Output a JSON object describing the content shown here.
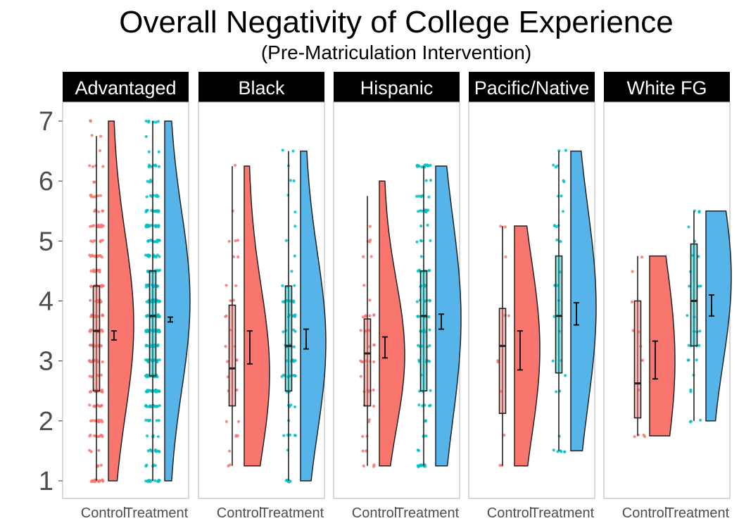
{
  "chart_data": {
    "type": "raincloud",
    "title": "Overall Negativity of College Experience",
    "subtitle": "(Pre-Matriculation Intervention)",
    "xlabel": "",
    "ylabel": "",
    "ylim": [
      1,
      7
    ],
    "y_ticks": [
      1,
      2,
      3,
      4,
      5,
      6,
      7
    ],
    "grid": false,
    "legend": "none",
    "groups": [
      "Control",
      "Treatment"
    ],
    "colors": {
      "Control": "#F8766D",
      "Treatment": "#00BFC4",
      "Control_cloud": "#F8766D",
      "Treatment_cloud": "#56B4E9",
      "strip_bg": "#000000",
      "panel_border": "#b3b3b3"
    },
    "panels": [
      {
        "name": "Advantaged",
        "control": {
          "min": 1,
          "q1": 2.5,
          "median": 3.5,
          "q3": 4.25,
          "max": 6.75,
          "mean": 3.42,
          "ci": [
            3.35,
            3.5
          ],
          "range": [
            1,
            7
          ],
          "n_points": 220,
          "density_peak": 3.6
        },
        "treatment": {
          "min": 1,
          "q1": 2.75,
          "median": 3.75,
          "q3": 4.5,
          "max": 7,
          "mean": 3.69,
          "ci": [
            3.65,
            3.73
          ],
          "range": [
            1,
            7
          ],
          "n_points": 320,
          "density_peak": 4.0
        }
      },
      {
        "name": "Black",
        "control": {
          "min": 1.25,
          "q1": 2.25,
          "median": 2.875,
          "q3": 3.93,
          "max": 6.25,
          "mean": 3.22,
          "ci": [
            2.95,
            3.5
          ],
          "range": [
            1.25,
            6.25
          ],
          "n_points": 30,
          "density_peak": 2.8
        },
        "treatment": {
          "min": 1,
          "q1": 2.5,
          "median": 3.25,
          "q3": 4.25,
          "max": 6.5,
          "mean": 3.37,
          "ci": [
            3.2,
            3.53
          ],
          "range": [
            1,
            6.5
          ],
          "n_points": 75,
          "density_peak": 3.3
        }
      },
      {
        "name": "Hispanic",
        "control": {
          "min": 1.25,
          "q1": 2.25,
          "median": 3.125,
          "q3": 3.7,
          "max": 5.75,
          "mean": 3.22,
          "ci": [
            3.05,
            3.4
          ],
          "range": [
            1.25,
            6
          ],
          "n_points": 45,
          "density_peak": 3.1
        },
        "treatment": {
          "min": 1.25,
          "q1": 2.5,
          "median": 3.75,
          "q3": 4.5,
          "max": 6.25,
          "mean": 3.65,
          "ci": [
            3.53,
            3.78
          ],
          "range": [
            1.25,
            6.25
          ],
          "n_points": 110,
          "density_peak": 3.7
        }
      },
      {
        "name": "Pacific/Native",
        "control": {
          "min": 1.25,
          "q1": 2.125,
          "median": 3.25,
          "q3": 3.875,
          "max": 5.25,
          "mean": 3.18,
          "ci": [
            2.85,
            3.5
          ],
          "range": [
            1.25,
            5.25
          ],
          "n_points": 12,
          "density_peak": 3.2
        },
        "treatment": {
          "min": 1.5,
          "q1": 2.8,
          "median": 3.75,
          "q3": 4.75,
          "max": 6.5,
          "mean": 3.78,
          "ci": [
            3.6,
            3.97
          ],
          "range": [
            1.5,
            6.5
          ],
          "n_points": 35,
          "density_peak": 3.9
        }
      },
      {
        "name": "White FG",
        "control": {
          "min": 1.75,
          "q1": 2.05,
          "median": 2.625,
          "q3": 4.0,
          "max": 4.75,
          "mean": 3.0,
          "ci": [
            2.7,
            3.33
          ],
          "range": [
            1.75,
            4.75
          ],
          "n_points": 12,
          "density_peak": 3.0
        },
        "treatment": {
          "min": 2,
          "q1": 3.25,
          "median": 4.0,
          "q3": 4.95,
          "max": 5.5,
          "mean": 3.93,
          "ci": [
            3.75,
            4.1
          ],
          "range": [
            2,
            5.5
          ],
          "n_points": 30,
          "density_peak": 4.4
        }
      }
    ]
  }
}
